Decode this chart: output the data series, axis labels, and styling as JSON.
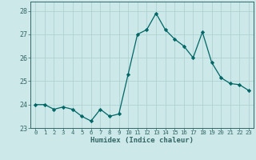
{
  "x": [
    0,
    1,
    2,
    3,
    4,
    5,
    6,
    7,
    8,
    9,
    10,
    11,
    12,
    13,
    14,
    15,
    16,
    17,
    18,
    19,
    20,
    21,
    22,
    23
  ],
  "y": [
    24.0,
    24.0,
    23.8,
    23.9,
    23.8,
    23.5,
    23.3,
    23.8,
    23.5,
    23.6,
    25.3,
    27.0,
    27.2,
    27.9,
    27.2,
    26.8,
    26.5,
    26.0,
    27.1,
    25.8,
    25.15,
    24.9,
    24.85,
    24.6
  ],
  "xlabel": "Humidex (Indice chaleur)",
  "ylim": [
    23.0,
    28.4
  ],
  "xlim": [
    -0.5,
    23.5
  ],
  "yticks": [
    23,
    24,
    25,
    26,
    27,
    28
  ],
  "xticks": [
    0,
    1,
    2,
    3,
    4,
    5,
    6,
    7,
    8,
    9,
    10,
    11,
    12,
    13,
    14,
    15,
    16,
    17,
    18,
    19,
    20,
    21,
    22,
    23
  ],
  "line_color": "#006666",
  "marker_color": "#006666",
  "bg_color": "#cce8e8",
  "grid_color": "#aacece",
  "axis_color": "#336666",
  "label_color": "#336666",
  "tick_color": "#336666"
}
